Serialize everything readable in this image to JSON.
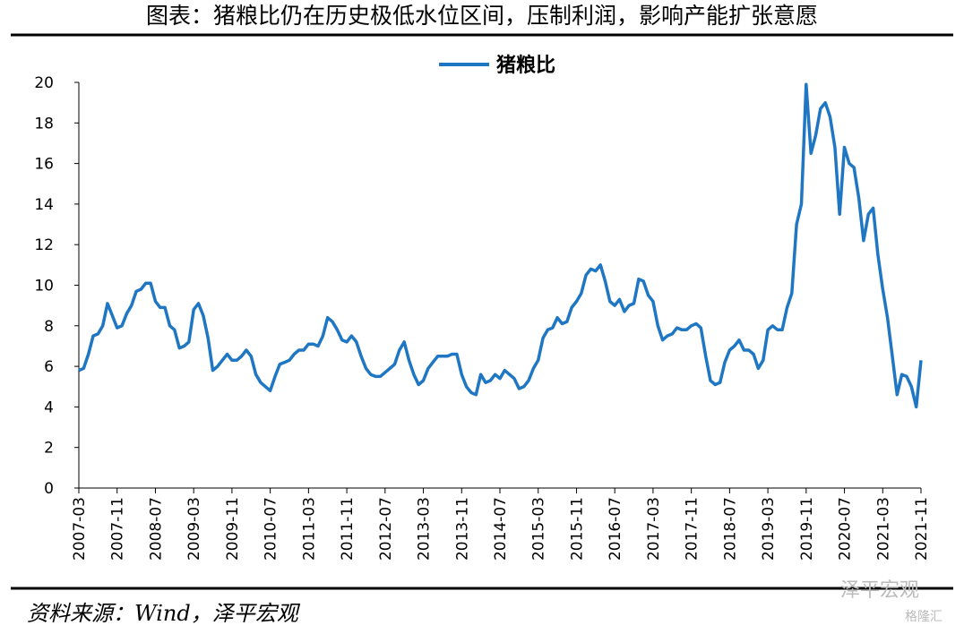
{
  "title": "图表：猪粮比仍在历史极低水位区间，压制利润，影响产能扩张意愿",
  "source": "资料来源：Wind，泽平宏观",
  "watermark": "泽平宏观",
  "watermark2": "格隆汇",
  "chart_data": {
    "type": "line",
    "x": [
      "2007-03",
      "2007-04",
      "2007-05",
      "2007-06",
      "2007-07",
      "2007-08",
      "2007-09",
      "2007-10",
      "2007-11",
      "2007-12",
      "2008-01",
      "2008-02",
      "2008-03",
      "2008-04",
      "2008-05",
      "2008-06",
      "2008-07",
      "2008-08",
      "2008-09",
      "2008-10",
      "2008-11",
      "2008-12",
      "2009-01",
      "2009-02",
      "2009-03",
      "2009-04",
      "2009-05",
      "2009-06",
      "2009-07",
      "2009-08",
      "2009-09",
      "2009-10",
      "2009-11",
      "2009-12",
      "2010-01",
      "2010-02",
      "2010-03",
      "2010-04",
      "2010-05",
      "2010-06",
      "2010-07",
      "2010-08",
      "2010-09",
      "2010-10",
      "2010-11",
      "2010-12",
      "2011-01",
      "2011-02",
      "2011-03",
      "2011-04",
      "2011-05",
      "2011-06",
      "2011-07",
      "2011-08",
      "2011-09",
      "2011-10",
      "2011-11",
      "2011-12",
      "2012-01",
      "2012-02",
      "2012-03",
      "2012-04",
      "2012-05",
      "2012-06",
      "2012-07",
      "2012-08",
      "2012-09",
      "2012-10",
      "2012-11",
      "2012-12",
      "2013-01",
      "2013-02",
      "2013-03",
      "2013-04",
      "2013-05",
      "2013-06",
      "2013-07",
      "2013-08",
      "2013-09",
      "2013-10",
      "2013-11",
      "2013-12",
      "2014-01",
      "2014-02",
      "2014-03",
      "2014-04",
      "2014-05",
      "2014-06",
      "2014-07",
      "2014-08",
      "2014-09",
      "2014-10",
      "2014-11",
      "2014-12",
      "2015-01",
      "2015-02",
      "2015-03",
      "2015-04",
      "2015-05",
      "2015-06",
      "2015-07",
      "2015-08",
      "2015-09",
      "2015-10",
      "2015-11",
      "2015-12",
      "2016-01",
      "2016-02",
      "2016-03",
      "2016-04",
      "2016-05",
      "2016-06",
      "2016-07",
      "2016-08",
      "2016-09",
      "2016-10",
      "2016-11",
      "2016-12",
      "2017-01",
      "2017-02",
      "2017-03",
      "2017-04",
      "2017-05",
      "2017-06",
      "2017-07",
      "2017-08",
      "2017-09",
      "2017-10",
      "2017-11",
      "2017-12",
      "2018-01",
      "2018-02",
      "2018-03",
      "2018-04",
      "2018-05",
      "2018-06",
      "2018-07",
      "2018-08",
      "2018-09",
      "2018-10",
      "2018-11",
      "2018-12",
      "2019-01",
      "2019-02",
      "2019-03",
      "2019-04",
      "2019-05",
      "2019-06",
      "2019-07",
      "2019-08",
      "2019-09",
      "2019-10",
      "2019-11",
      "2019-12",
      "2020-01",
      "2020-02",
      "2020-03",
      "2020-04",
      "2020-05",
      "2020-06",
      "2020-07",
      "2020-08",
      "2020-09",
      "2020-10",
      "2020-11",
      "2020-12",
      "2021-01",
      "2021-02",
      "2021-03",
      "2021-04",
      "2021-05",
      "2021-06",
      "2021-07",
      "2021-08",
      "2021-09",
      "2021-10",
      "2021-11"
    ],
    "series": [
      {
        "name": "猪粮比",
        "color": "#1f77c4",
        "values": [
          5.8,
          5.9,
          6.6,
          7.5,
          7.6,
          8.0,
          9.1,
          8.5,
          7.9,
          8.0,
          8.6,
          9.0,
          9.7,
          9.8,
          10.1,
          10.1,
          9.2,
          8.9,
          8.9,
          8.0,
          7.8,
          6.9,
          7.0,
          7.2,
          8.8,
          9.1,
          8.5,
          7.4,
          5.8,
          6.0,
          6.3,
          6.6,
          6.3,
          6.3,
          6.5,
          6.8,
          6.5,
          5.6,
          5.2,
          5.0,
          4.8,
          5.5,
          6.1,
          6.2,
          6.3,
          6.6,
          6.8,
          6.8,
          7.1,
          7.1,
          7.0,
          7.5,
          8.4,
          8.2,
          7.8,
          7.3,
          7.2,
          7.5,
          7.2,
          6.5,
          5.9,
          5.6,
          5.5,
          5.5,
          5.7,
          5.9,
          6.1,
          6.8,
          7.2,
          6.3,
          5.6,
          5.1,
          5.3,
          5.9,
          6.2,
          6.5,
          6.5,
          6.5,
          6.6,
          6.6,
          5.6,
          5.0,
          4.7,
          4.6,
          5.6,
          5.2,
          5.3,
          5.6,
          5.4,
          5.8,
          5.6,
          5.4,
          4.9,
          5.0,
          5.3,
          5.9,
          6.3,
          7.4,
          7.8,
          7.9,
          8.4,
          8.1,
          8.2,
          8.9,
          9.2,
          9.6,
          10.5,
          10.8,
          10.7,
          11.0,
          10.2,
          9.2,
          9.0,
          9.3,
          8.7,
          9.0,
          9.1,
          10.3,
          10.2,
          9.5,
          9.2,
          8.0,
          7.3,
          7.5,
          7.6,
          7.9,
          7.8,
          7.8,
          8.0,
          8.1,
          7.9,
          6.5,
          5.3,
          5.1,
          5.2,
          6.2,
          6.8,
          7.0,
          7.3,
          6.8,
          6.8,
          6.6,
          5.9,
          6.3,
          7.8,
          8.0,
          7.8,
          7.8,
          8.9,
          9.6,
          13.0,
          14.0,
          19.9,
          16.5,
          17.4,
          18.7,
          19.0,
          18.3,
          16.8,
          13.5,
          16.8,
          16.0,
          15.8,
          14.3,
          12.2,
          13.5,
          13.8,
          11.5,
          9.8,
          8.4,
          6.5,
          4.6,
          5.6,
          5.5,
          5.0,
          4.0,
          6.3
        ]
      }
    ],
    "xticks": [
      "2007-03",
      "2007-11",
      "2008-07",
      "2009-03",
      "2009-11",
      "2010-07",
      "2011-03",
      "2011-11",
      "2012-07",
      "2013-03",
      "2013-11",
      "2014-07",
      "2015-03",
      "2015-11",
      "2016-07",
      "2017-03",
      "2017-11",
      "2018-07",
      "2019-03",
      "2019-11",
      "2020-07",
      "2021-03",
      "2021-11"
    ],
    "ylim": [
      0,
      20
    ],
    "yticks": [
      0,
      2,
      4,
      6,
      8,
      10,
      12,
      14,
      16,
      18,
      20
    ],
    "legend": "top",
    "grid": false
  }
}
